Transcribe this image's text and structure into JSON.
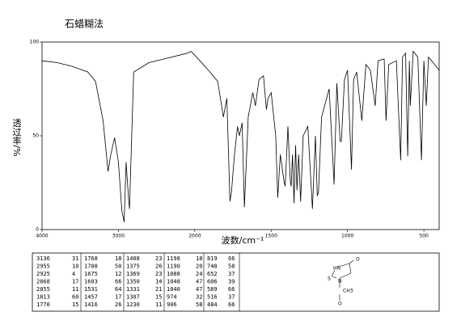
{
  "chart_data": {
    "type": "line",
    "title": "石蜡糊法",
    "x_label": "波数/cm⁻¹",
    "y_label": "透过率/%",
    "color": "#000000",
    "x_scale_break": 2000,
    "xlim": [
      4000,
      400
    ],
    "xticks": [
      4000,
      3000,
      2000,
      1500,
      1000,
      500
    ],
    "ylim": [
      0,
      100
    ],
    "yticks": [
      0,
      50,
      100
    ],
    "x": [
      4000,
      3800,
      3600,
      3400,
      3300,
      3200,
      3136,
      3100,
      3050,
      3000,
      2955,
      2925,
      2900,
      2868,
      2855,
      2800,
      2600,
      2400,
      2200,
      2100,
      2050,
      2000,
      1900,
      1850,
      1813,
      1790,
      1770,
      1760,
      1740,
      1720,
      1708,
      1690,
      1675,
      1650,
      1620,
      1603,
      1580,
      1550,
      1531,
      1520,
      1500,
      1470,
      1457,
      1440,
      1416,
      1408,
      1390,
      1375,
      1369,
      1360,
      1350,
      1340,
      1331,
      1320,
      1307,
      1290,
      1260,
      1230,
      1210,
      1198,
      1190,
      1170,
      1120,
      1088,
      1070,
      1048,
      1040,
      1020,
      1000,
      974,
      960,
      940,
      906,
      880,
      850,
      819,
      800,
      760,
      748,
      730,
      680,
      652,
      640,
      620,
      606,
      595,
      589,
      570,
      540,
      516,
      500,
      484,
      470,
      430,
      400
    ],
    "values": [
      90,
      89,
      87,
      84,
      79,
      58,
      31,
      40,
      49,
      36,
      10,
      4,
      36,
      17,
      11,
      84,
      89,
      91,
      93,
      94,
      95,
      93,
      84,
      79,
      60,
      70,
      15,
      20,
      40,
      55,
      50,
      57,
      12,
      60,
      73,
      66,
      80,
      82,
      64,
      70,
      73,
      50,
      17,
      40,
      26,
      23,
      55,
      26,
      23,
      40,
      14,
      45,
      21,
      40,
      15,
      50,
      55,
      11,
      50,
      18,
      20,
      60,
      75,
      24,
      78,
      47,
      47,
      80,
      85,
      32,
      80,
      84,
      58,
      88,
      85,
      66,
      90,
      91,
      58,
      88,
      90,
      37,
      92,
      94,
      39,
      90,
      66,
      95,
      92,
      37,
      90,
      66,
      92,
      88,
      85
    ]
  },
  "table": {
    "rows": [
      [
        3136,
        31,
        1768,
        18,
        1408,
        23,
        1198,
        18,
        819,
        66
      ],
      [
        2955,
        10,
        1708,
        50,
        1375,
        26,
        1190,
        20,
        748,
        58
      ],
      [
        2925,
        4,
        1675,
        12,
        1369,
        23,
        1088,
        24,
        652,
        37
      ],
      [
        2868,
        17,
        1603,
        66,
        1350,
        14,
        1048,
        47,
        606,
        39
      ],
      [
        2855,
        11,
        1531,
        64,
        1331,
        21,
        1040,
        47,
        589,
        66
      ],
      [
        1813,
        60,
        1457,
        17,
        1307,
        15,
        974,
        32,
        516,
        37
      ],
      [
        1770,
        15,
        1416,
        26,
        1230,
        11,
        906,
        58,
        484,
        66
      ]
    ]
  },
  "structure": {
    "labels": [
      "HN",
      "O",
      "S",
      "N",
      "CH3",
      "O"
    ]
  }
}
